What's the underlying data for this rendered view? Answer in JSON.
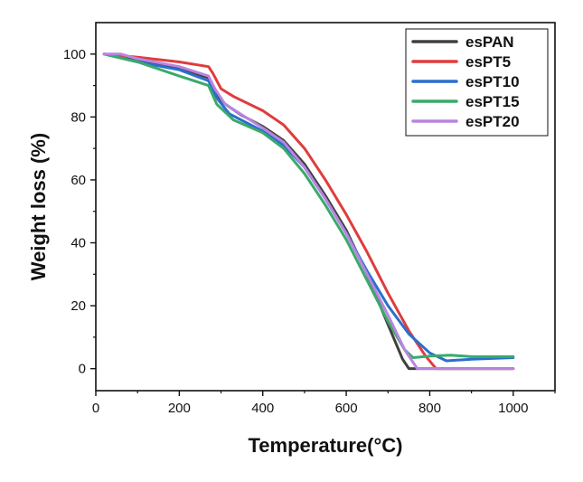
{
  "chart_data": {
    "type": "line",
    "xlabel": "Temperature(°C)",
    "ylabel": "Weight loss (%)",
    "xlim": [
      0,
      1100
    ],
    "ylim": [
      -7,
      110
    ],
    "xticks": [
      0,
      200,
      400,
      600,
      800,
      1000
    ],
    "yticks": [
      0,
      20,
      40,
      60,
      80,
      100
    ],
    "grid": false,
    "legend_position": "top-right",
    "series": [
      {
        "name": "esPAN",
        "color": "#404040",
        "points": [
          [
            20,
            100
          ],
          [
            100,
            98
          ],
          [
            200,
            95.5
          ],
          [
            270,
            92.5
          ],
          [
            285,
            89
          ],
          [
            300,
            85
          ],
          [
            350,
            80.5
          ],
          [
            400,
            77
          ],
          [
            450,
            72.5
          ],
          [
            500,
            65
          ],
          [
            550,
            55
          ],
          [
            600,
            44
          ],
          [
            650,
            30
          ],
          [
            700,
            14
          ],
          [
            735,
            3
          ],
          [
            750,
            0
          ],
          [
            1000,
            0
          ]
        ]
      },
      {
        "name": "esPT5",
        "color": "#e03c3c",
        "points": [
          [
            20,
            100
          ],
          [
            100,
            99
          ],
          [
            200,
            97.5
          ],
          [
            270,
            96
          ],
          [
            280,
            94
          ],
          [
            300,
            89
          ],
          [
            330,
            86.5
          ],
          [
            400,
            82
          ],
          [
            450,
            77.5
          ],
          [
            500,
            70
          ],
          [
            550,
            60
          ],
          [
            600,
            49
          ],
          [
            650,
            37
          ],
          [
            700,
            24
          ],
          [
            750,
            12
          ],
          [
            790,
            4
          ],
          [
            815,
            0
          ],
          [
            1000,
            0
          ]
        ]
      },
      {
        "name": "esPT10",
        "color": "#2a6fce",
        "points": [
          [
            20,
            100
          ],
          [
            100,
            97.5
          ],
          [
            200,
            95
          ],
          [
            270,
            91.5
          ],
          [
            290,
            86
          ],
          [
            320,
            81
          ],
          [
            400,
            75.5
          ],
          [
            450,
            71
          ],
          [
            500,
            64
          ],
          [
            550,
            54
          ],
          [
            600,
            43
          ],
          [
            650,
            31
          ],
          [
            700,
            20
          ],
          [
            750,
            11
          ],
          [
            800,
            5
          ],
          [
            840,
            2.5
          ],
          [
            900,
            3
          ],
          [
            1000,
            3.5
          ]
        ]
      },
      {
        "name": "esPT15",
        "color": "#3aaa6a",
        "points": [
          [
            20,
            100
          ],
          [
            100,
            97.5
          ],
          [
            200,
            93
          ],
          [
            270,
            90
          ],
          [
            290,
            84
          ],
          [
            330,
            79
          ],
          [
            400,
            75
          ],
          [
            450,
            70
          ],
          [
            500,
            62
          ],
          [
            550,
            52
          ],
          [
            600,
            41
          ],
          [
            650,
            28
          ],
          [
            700,
            15
          ],
          [
            740,
            6
          ],
          [
            760,
            3.5
          ],
          [
            800,
            4
          ],
          [
            850,
            4.3
          ],
          [
            900,
            3.8
          ],
          [
            1000,
            3.8
          ]
        ]
      },
      {
        "name": "esPT20",
        "color": "#b884e0",
        "points": [
          [
            20,
            100
          ],
          [
            60,
            100
          ],
          [
            100,
            98.5
          ],
          [
            200,
            96
          ],
          [
            270,
            93
          ],
          [
            285,
            89
          ],
          [
            310,
            84
          ],
          [
            400,
            76.5
          ],
          [
            450,
            72
          ],
          [
            500,
            64
          ],
          [
            550,
            54
          ],
          [
            600,
            43
          ],
          [
            650,
            30
          ],
          [
            700,
            17
          ],
          [
            740,
            6
          ],
          [
            770,
            0
          ],
          [
            1000,
            0
          ]
        ]
      }
    ]
  }
}
